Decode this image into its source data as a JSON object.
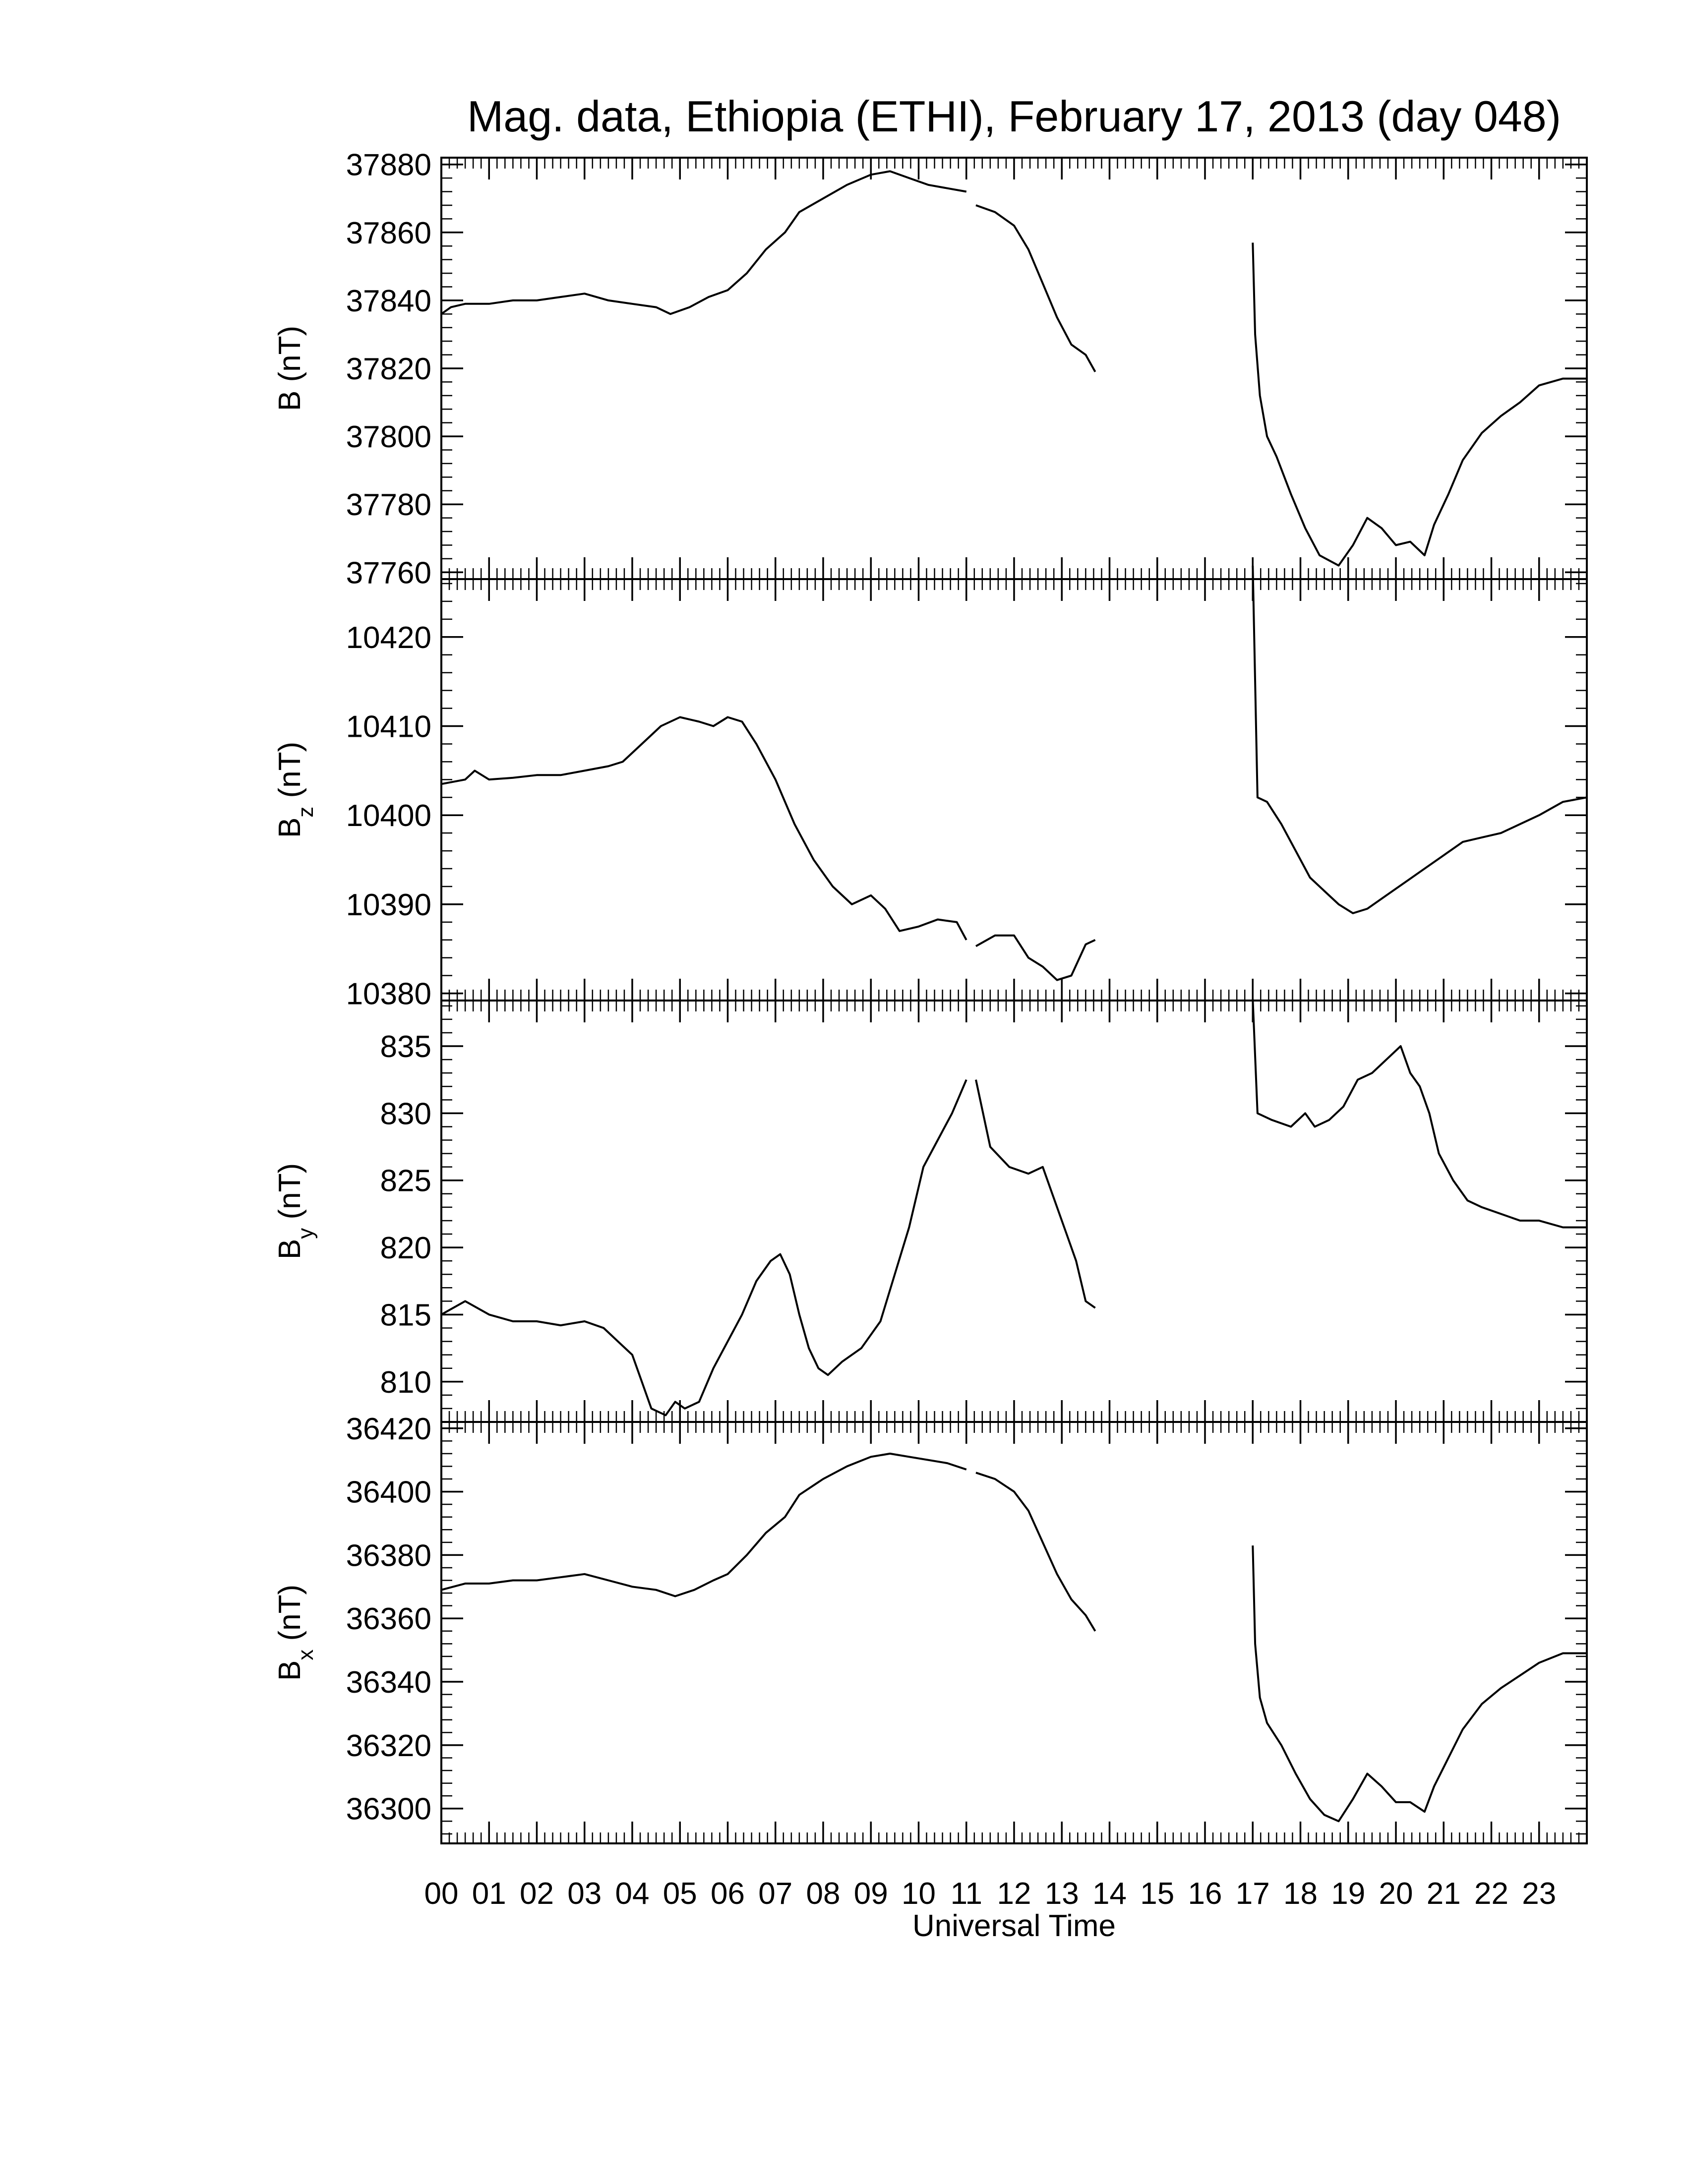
{
  "chart_data": {
    "title": "Mag. data, Ethiopia (ETHI), February 17, 2013 (day 048)",
    "xlabel": "Universal Time",
    "x_ticks": [
      "00",
      "01",
      "02",
      "03",
      "04",
      "05",
      "06",
      "07",
      "08",
      "09",
      "10",
      "11",
      "12",
      "13",
      "14",
      "15",
      "16",
      "17",
      "18",
      "19",
      "20",
      "21",
      "22",
      "23"
    ],
    "xlim": [
      0,
      24
    ],
    "grid": false,
    "line_color": "#000000",
    "panels": [
      {
        "type": "line",
        "ylabel_main": "B",
        "ylabel_sub": "",
        "ylabel_unit": " (nT)",
        "ylim": [
          37758,
          37882
        ],
        "y_ticks": [
          37760,
          37780,
          37800,
          37820,
          37840,
          37860,
          37880
        ],
        "segments": [
          [
            [
              0,
              37836
            ],
            [
              0.2,
              37838
            ],
            [
              0.5,
              37839
            ],
            [
              1,
              37839
            ],
            [
              1.5,
              37840
            ],
            [
              2,
              37840
            ],
            [
              2.5,
              37841
            ],
            [
              3,
              37842
            ],
            [
              3.5,
              37840
            ],
            [
              4,
              37839
            ],
            [
              4.5,
              37838
            ],
            [
              4.8,
              37836
            ],
            [
              5.2,
              37838
            ],
            [
              5.6,
              37841
            ],
            [
              6,
              37843
            ],
            [
              6.4,
              37848
            ],
            [
              6.8,
              37855
            ],
            [
              7.2,
              37860
            ],
            [
              7.5,
              37866
            ],
            [
              8,
              37870
            ],
            [
              8.5,
              37874
            ],
            [
              9,
              37877
            ],
            [
              9.4,
              37878
            ],
            [
              9.8,
              37876
            ],
            [
              10.2,
              37874
            ],
            [
              10.6,
              37873
            ],
            [
              11,
              37872
            ]
          ],
          [
            [
              11.2,
              37868
            ],
            [
              11.6,
              37866
            ],
            [
              12,
              37862
            ],
            [
              12.3,
              37855
            ],
            [
              12.6,
              37845
            ],
            [
              12.9,
              37835
            ],
            [
              13.2,
              37827
            ],
            [
              13.5,
              37824
            ],
            [
              13.7,
              37819
            ]
          ],
          [
            [
              17,
              37857
            ],
            [
              17.05,
              37830
            ],
            [
              17.15,
              37812
            ],
            [
              17.3,
              37800
            ],
            [
              17.5,
              37794
            ],
            [
              17.8,
              37783
            ],
            [
              18.1,
              37773
            ],
            [
              18.4,
              37765
            ],
            [
              18.8,
              37762
            ],
            [
              19.1,
              37768
            ],
            [
              19.4,
              37776
            ],
            [
              19.7,
              37773
            ],
            [
              20,
              37768
            ],
            [
              20.3,
              37769
            ],
            [
              20.6,
              37765
            ],
            [
              20.8,
              37774
            ],
            [
              21.1,
              37783
            ],
            [
              21.4,
              37793
            ],
            [
              21.8,
              37801
            ],
            [
              22.2,
              37806
            ],
            [
              22.6,
              37810
            ],
            [
              23,
              37815
            ],
            [
              23.5,
              37817
            ],
            [
              24,
              37817
            ]
          ]
        ]
      },
      {
        "type": "line",
        "ylabel_main": "B",
        "ylabel_sub": "z",
        "ylabel_unit": " (nT)",
        "ylim": [
          10379.2,
          10426.5
        ],
        "y_ticks": [
          10380,
          10390,
          10400,
          10410,
          10420
        ],
        "segments": [
          [
            [
              0,
              10403.5
            ],
            [
              0.5,
              10404
            ],
            [
              0.7,
              10405
            ],
            [
              1,
              10404
            ],
            [
              1.5,
              10404.2
            ],
            [
              2,
              10404.5
            ],
            [
              2.5,
              10404.5
            ],
            [
              3,
              10405
            ],
            [
              3.5,
              10405.5
            ],
            [
              3.8,
              10406
            ],
            [
              4.2,
              10408
            ],
            [
              4.6,
              10410
            ],
            [
              5,
              10411
            ],
            [
              5.4,
              10410.5
            ],
            [
              5.7,
              10410
            ],
            [
              6,
              10411
            ],
            [
              6.3,
              10410.5
            ],
            [
              6.6,
              10408
            ],
            [
              7,
              10404
            ],
            [
              7.4,
              10399
            ],
            [
              7.8,
              10395
            ],
            [
              8.2,
              10392
            ],
            [
              8.6,
              10390
            ],
            [
              9,
              10391
            ],
            [
              9.3,
              10389.5
            ],
            [
              9.6,
              10387
            ],
            [
              10,
              10387.5
            ],
            [
              10.4,
              10388.3
            ],
            [
              10.8,
              10388
            ],
            [
              11,
              10386
            ]
          ],
          [
            [
              11.2,
              10385.3
            ],
            [
              11.6,
              10386.5
            ],
            [
              12,
              10386.5
            ],
            [
              12.3,
              10384
            ],
            [
              12.6,
              10383
            ],
            [
              12.9,
              10381.5
            ],
            [
              13.2,
              10382
            ],
            [
              13.5,
              10385.5
            ],
            [
              13.7,
              10386
            ]
          ],
          [
            [
              17,
              10428
            ],
            [
              17.05,
              10415
            ],
            [
              17.1,
              10402
            ],
            [
              17.3,
              10401.5
            ],
            [
              17.6,
              10399
            ],
            [
              17.9,
              10396
            ],
            [
              18.2,
              10393
            ],
            [
              18.5,
              10391.5
            ],
            [
              18.8,
              10390
            ],
            [
              19.1,
              10389
            ],
            [
              19.4,
              10389.5
            ],
            [
              19.8,
              10391
            ],
            [
              20.2,
              10392.5
            ],
            [
              20.6,
              10394
            ],
            [
              21,
              10395.5
            ],
            [
              21.4,
              10397
            ],
            [
              21.8,
              10397.5
            ],
            [
              22.2,
              10398
            ],
            [
              22.6,
              10399
            ],
            [
              23,
              10400
            ],
            [
              23.5,
              10401.5
            ],
            [
              24,
              10402
            ]
          ]
        ]
      },
      {
        "type": "line",
        "ylabel_main": "B",
        "ylabel_sub": "y",
        "ylabel_unit": " (nT)",
        "ylim": [
          807,
          838.4
        ],
        "y_ticks": [
          810,
          815,
          820,
          825,
          830,
          835
        ],
        "segments": [
          [
            [
              0,
              815
            ],
            [
              0.5,
              816
            ],
            [
              1,
              815
            ],
            [
              1.5,
              814.5
            ],
            [
              2,
              814.5
            ],
            [
              2.5,
              814.2
            ],
            [
              3,
              814.5
            ],
            [
              3.4,
              814
            ],
            [
              3.7,
              813
            ],
            [
              4,
              812
            ],
            [
              4.2,
              810
            ],
            [
              4.4,
              808
            ],
            [
              4.7,
              807.5
            ],
            [
              4.9,
              808.5
            ],
            [
              5.1,
              808
            ],
            [
              5.4,
              808.5
            ],
            [
              5.7,
              811
            ],
            [
              6,
              813
            ],
            [
              6.3,
              815
            ],
            [
              6.6,
              817.5
            ],
            [
              6.9,
              819
            ],
            [
              7.1,
              819.5
            ],
            [
              7.3,
              818
            ],
            [
              7.5,
              815
            ],
            [
              7.7,
              812.5
            ],
            [
              7.9,
              811
            ],
            [
              8.1,
              810.5
            ],
            [
              8.4,
              811.5
            ],
            [
              8.8,
              812.5
            ],
            [
              9.2,
              814.5
            ],
            [
              9.5,
              818
            ],
            [
              9.8,
              821.5
            ],
            [
              10.1,
              826
            ],
            [
              10.4,
              828
            ],
            [
              10.7,
              830
            ],
            [
              11,
              832.5
            ]
          ],
          [
            [
              11.2,
              832.5
            ],
            [
              11.5,
              827.5
            ],
            [
              11.9,
              826
            ],
            [
              12.3,
              825.5
            ],
            [
              12.6,
              826
            ],
            [
              12.8,
              824
            ],
            [
              13.1,
              821
            ],
            [
              13.3,
              819
            ],
            [
              13.5,
              816
            ],
            [
              13.7,
              815.5
            ]
          ],
          [
            [
              17,
              838.5
            ],
            [
              17.1,
              830
            ],
            [
              17.4,
              829.5
            ],
            [
              17.8,
              829
            ],
            [
              18.1,
              830
            ],
            [
              18.3,
              829
            ],
            [
              18.6,
              829.5
            ],
            [
              18.9,
              830.5
            ],
            [
              19.2,
              832.5
            ],
            [
              19.5,
              833
            ],
            [
              19.8,
              834
            ],
            [
              20.1,
              835
            ],
            [
              20.3,
              833
            ],
            [
              20.5,
              832
            ],
            [
              20.7,
              830
            ],
            [
              20.9,
              827
            ],
            [
              21.2,
              825
            ],
            [
              21.5,
              823.5
            ],
            [
              21.8,
              823
            ],
            [
              22.2,
              822.5
            ],
            [
              22.6,
              822
            ],
            [
              23,
              822
            ],
            [
              23.5,
              821.5
            ],
            [
              24,
              821.5
            ]
          ]
        ]
      },
      {
        "type": "line",
        "ylabel_main": "B",
        "ylabel_sub": "x",
        "ylabel_unit": " (nT)",
        "ylim": [
          36289,
          36422
        ],
        "y_ticks": [
          36300,
          36320,
          36340,
          36360,
          36380,
          36400,
          36420
        ],
        "segments": [
          [
            [
              0,
              36369
            ],
            [
              0.5,
              36371
            ],
            [
              1,
              36371
            ],
            [
              1.5,
              36372
            ],
            [
              2,
              36372
            ],
            [
              2.5,
              36373
            ],
            [
              3,
              36374
            ],
            [
              3.5,
              36372
            ],
            [
              4,
              36370
            ],
            [
              4.5,
              36369
            ],
            [
              4.9,
              36367
            ],
            [
              5.3,
              36369
            ],
            [
              5.7,
              36372
            ],
            [
              6,
              36374
            ],
            [
              6.4,
              36380
            ],
            [
              6.8,
              36387
            ],
            [
              7.2,
              36392
            ],
            [
              7.5,
              36399
            ],
            [
              8,
              36404
            ],
            [
              8.5,
              36408
            ],
            [
              9,
              36411
            ],
            [
              9.4,
              36412
            ],
            [
              9.8,
              36411
            ],
            [
              10.2,
              36410
            ],
            [
              10.6,
              36409
            ],
            [
              11,
              36407
            ]
          ],
          [
            [
              11.2,
              36406
            ],
            [
              11.6,
              36404
            ],
            [
              12,
              36400
            ],
            [
              12.3,
              36394
            ],
            [
              12.6,
              36384
            ],
            [
              12.9,
              36374
            ],
            [
              13.2,
              36366
            ],
            [
              13.5,
              36361
            ],
            [
              13.7,
              36356
            ]
          ],
          [
            [
              17,
              36383
            ],
            [
              17.05,
              36352
            ],
            [
              17.15,
              36335
            ],
            [
              17.3,
              36327
            ],
            [
              17.6,
              36320
            ],
            [
              17.9,
              36311
            ],
            [
              18.2,
              36303
            ],
            [
              18.5,
              36298
            ],
            [
              18.8,
              36296
            ],
            [
              19.1,
              36303
            ],
            [
              19.4,
              36311
            ],
            [
              19.7,
              36307
            ],
            [
              20,
              36302
            ],
            [
              20.3,
              36302
            ],
            [
              20.6,
              36299
            ],
            [
              20.8,
              36307
            ],
            [
              21.1,
              36316
            ],
            [
              21.4,
              36325
            ],
            [
              21.8,
              36333
            ],
            [
              22.2,
              36338
            ],
            [
              22.6,
              36342
            ],
            [
              23,
              36346
            ],
            [
              23.5,
              36349
            ],
            [
              24,
              36349
            ]
          ]
        ]
      }
    ]
  }
}
